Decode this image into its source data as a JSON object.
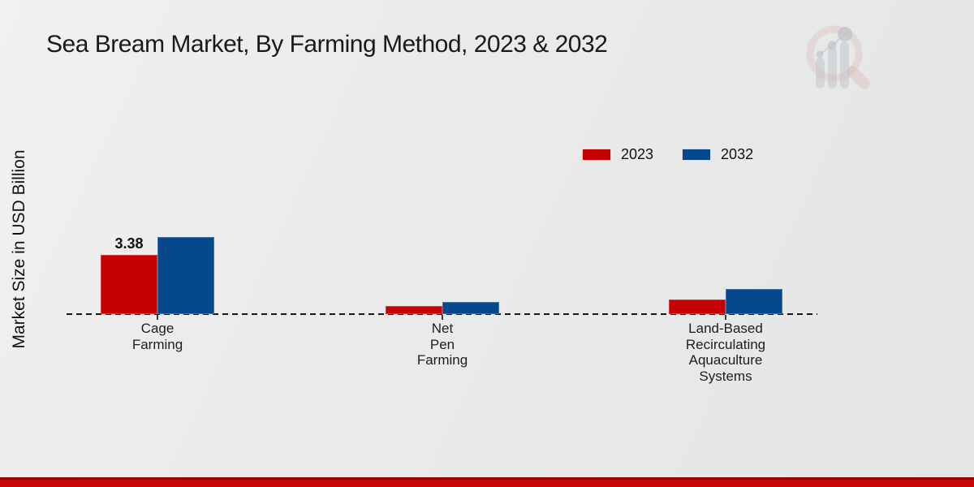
{
  "page": {
    "title": "Sea Bream Market, By Farming Method, 2023 & 2032",
    "ylabel": "Market Size in USD Billion"
  },
  "legend": {
    "items": [
      {
        "label": "2023",
        "color": "#c60101"
      },
      {
        "label": "2032",
        "color": "#05498a"
      }
    ]
  },
  "chart_data": {
    "type": "bar",
    "title": "Sea Bream Market, By Farming Method, 2023 & 2032",
    "xlabel": "",
    "ylabel": "Market Size in USD Billion",
    "categories": [
      "Cage Farming",
      "Net Pen Farming",
      "Land-Based Recirculating Aquaculture Systems"
    ],
    "category_label_lines": [
      [
        "Cage",
        "Farming"
      ],
      [
        "Net",
        "Pen",
        "Farming"
      ],
      [
        "Land-Based",
        "Recirculating",
        "Aquaculture",
        "Systems"
      ]
    ],
    "series": [
      {
        "name": "2023",
        "color": "#c60101",
        "values": [
          3.38,
          0.46,
          0.84
        ]
      },
      {
        "name": "2032",
        "color": "#05498a",
        "values": [
          4.43,
          0.7,
          1.42
        ]
      }
    ],
    "data_labels": [
      {
        "series_index": 0,
        "category_index": 0,
        "text": "3.38"
      }
    ],
    "ylim": [
      0,
      5
    ],
    "grid": false,
    "legend_position": "upper-right",
    "baseline_style": "dashed-zero-line"
  },
  "watermark": {
    "name": "market-research-magnifier-bar-chart-logo"
  },
  "footer": {
    "band_color": "#c90404"
  }
}
